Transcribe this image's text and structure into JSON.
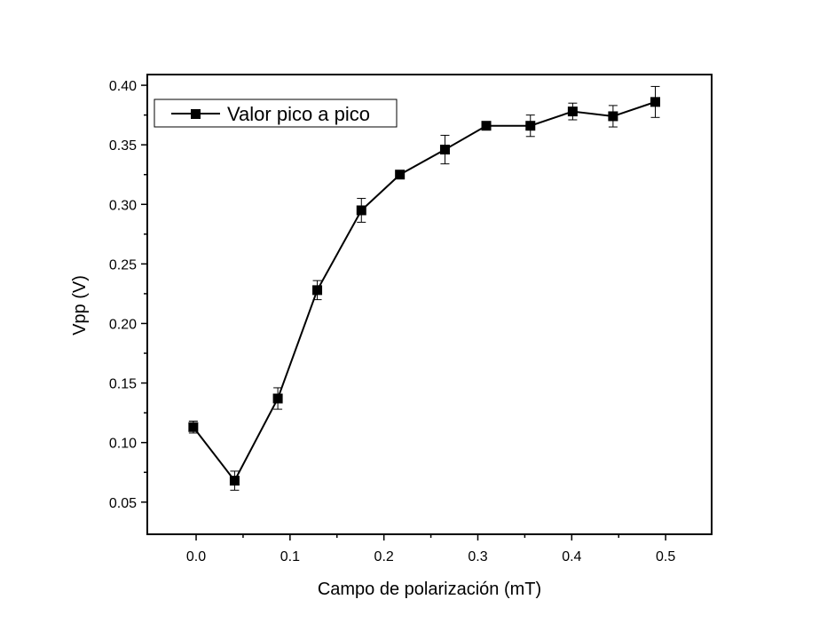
{
  "chart_data": {
    "type": "line",
    "title": "",
    "xlabel": "Campo de polarización (mT)",
    "ylabel": "Vpp (V)",
    "xlim": [
      -0.052,
      0.549
    ],
    "ylim": [
      0.023,
      0.409
    ],
    "xticks": [
      0.0,
      0.1,
      0.2,
      0.3,
      0.4,
      0.5
    ],
    "xtick_labels": [
      "0.0",
      "0.1",
      "0.2",
      "0.3",
      "0.4",
      "0.5"
    ],
    "xminor_ticks": [
      0.05,
      0.15,
      0.25,
      0.35,
      0.45
    ],
    "yticks": [
      0.05,
      0.1,
      0.15,
      0.2,
      0.25,
      0.3,
      0.35,
      0.4
    ],
    "ytick_labels": [
      "0.05",
      "0.10",
      "0.15",
      "0.20",
      "0.25",
      "0.30",
      "0.35",
      "0.40"
    ],
    "yminor_ticks": [
      0.075,
      0.125,
      0.175,
      0.225,
      0.275,
      0.325,
      0.375
    ],
    "grid": false,
    "legend": {
      "position": "upper left",
      "entries": [
        "Valor pico a pico"
      ]
    },
    "series": [
      {
        "name": "Valor pico a pico",
        "marker": "square",
        "color": "#000000",
        "x": [
          -0.003,
          0.041,
          0.087,
          0.129,
          0.176,
          0.217,
          0.265,
          0.309,
          0.356,
          0.401,
          0.444,
          0.489
        ],
        "y": [
          0.113,
          0.068,
          0.137,
          0.228,
          0.295,
          0.325,
          0.346,
          0.366,
          0.366,
          0.378,
          0.374,
          0.386
        ],
        "yerr": [
          0.005,
          0.008,
          0.009,
          0.008,
          0.01,
          0.002,
          0.012,
          0.002,
          0.009,
          0.007,
          0.009,
          0.013
        ]
      }
    ]
  }
}
